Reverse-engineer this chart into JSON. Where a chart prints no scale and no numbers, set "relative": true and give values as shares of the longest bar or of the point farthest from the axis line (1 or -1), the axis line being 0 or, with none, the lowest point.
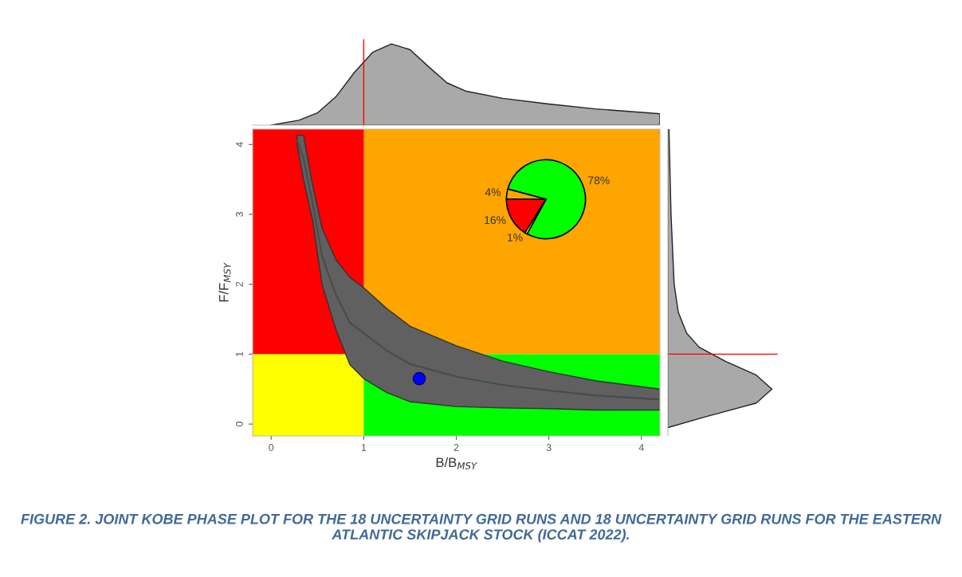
{
  "chart_data": [
    {
      "type": "scatter",
      "xlabel": "B/B$_{MSY}$",
      "ylabel": "F/F$_{MSY}$",
      "xlim": [
        -0.2,
        4.2
      ],
      "ylim": [
        -0.17,
        4.22
      ],
      "xticks": [
        0,
        1,
        2,
        3,
        4
      ],
      "yticks": [
        0,
        1,
        2,
        3,
        4
      ],
      "grid": false,
      "bands": [
        {
          "axis": "y",
          "from": 1,
          "to": 4.22,
          "color": "#ffa500"
        },
        {
          "axis": "x",
          "from": -0.2,
          "to": 1,
          "color": "#ff0000"
        },
        {
          "axis": "y",
          "from": -0.17,
          "to": 1,
          "color": "#00ff00"
        },
        {
          "axis": "x",
          "from": -0.2,
          "to": 1,
          "color": "#ffff00"
        }
      ],
      "series": [
        {
          "type": "line",
          "color": "#4a4a4a",
          "x": [
            0.28,
            0.35,
            0.45,
            0.55,
            0.7,
            0.85,
            1.0,
            1.25,
            1.5,
            2.0,
            2.5,
            3.0,
            3.5,
            4.2
          ],
          "values": [
            4.06,
            3.8,
            3.15,
            2.4,
            1.85,
            1.45,
            1.3,
            1.05,
            0.86,
            0.68,
            0.56,
            0.48,
            0.41,
            0.35
          ],
          "upper": [
            4.13,
            4.13,
            3.4,
            2.8,
            2.35,
            2.1,
            1.95,
            1.65,
            1.4,
            1.12,
            0.9,
            0.75,
            0.62,
            0.5
          ],
          "lower": [
            4.0,
            3.5,
            2.9,
            2.0,
            1.35,
            0.85,
            0.65,
            0.45,
            0.32,
            0.25,
            0.23,
            0.22,
            0.2,
            0.2
          ]
        },
        {
          "type": "scatter",
          "color": "#0000ff",
          "x": [
            1.6
          ],
          "values": [
            0.65
          ],
          "marker": "circle"
        }
      ],
      "annotations": [
        "FIGURE 2. JOINT KOBE PHASE PLOT FOR THE 18 UNCERTAINTY GRID RUNS AND 18 UNCERTAINTY GRID RUNS FOR THE EASTERN ATLANTIC SKIPJACK STOCK (ICCAT 2022)."
      ]
    },
    {
      "type": "area",
      "relative": true,
      "tick_labels": false,
      "color": "#a9a9a9",
      "x": [
        0,
        0.3,
        0.5,
        0.7,
        0.9,
        1.1,
        1.3,
        1.5,
        1.7,
        1.9,
        2.1,
        2.5,
        3,
        3.5,
        4.2
      ],
      "values": [
        0.0,
        0.06,
        0.15,
        0.35,
        0.65,
        0.9,
        1.0,
        0.93,
        0.72,
        0.52,
        0.42,
        0.33,
        0.26,
        0.2,
        0.14
      ],
      "xlim": [
        -0.2,
        4.2
      ],
      "ref_lines": [
        {
          "axis": "x",
          "value": 1,
          "color": "#ff0000"
        }
      ]
    },
    {
      "type": "area",
      "relative": true,
      "orientation": "horizontal",
      "tick_labels": false,
      "color": "#a9a9a9",
      "x": [
        -0.05,
        0.1,
        0.3,
        0.5,
        0.7,
        0.9,
        1.1,
        1.3,
        1.6,
        2,
        3,
        4.22
      ],
      "values": [
        0.0,
        0.35,
        0.85,
        1.0,
        0.85,
        0.55,
        0.3,
        0.18,
        0.1,
        0.06,
        0.03,
        0.01
      ],
      "ylim": [
        -0.17,
        4.22
      ],
      "ref_lines": [
        {
          "axis": "y",
          "value": 1,
          "color": "#ff0000"
        }
      ]
    },
    {
      "type": "pie",
      "categories": [
        null,
        null,
        null,
        null
      ],
      "values": [
        78,
        1,
        16,
        4
      ],
      "colors": [
        "#00ff00",
        "#ffff00",
        "#ff0000",
        "#ffa500"
      ],
      "value_labels": [
        "78%",
        "1%",
        "16%",
        "4%"
      ]
    }
  ]
}
